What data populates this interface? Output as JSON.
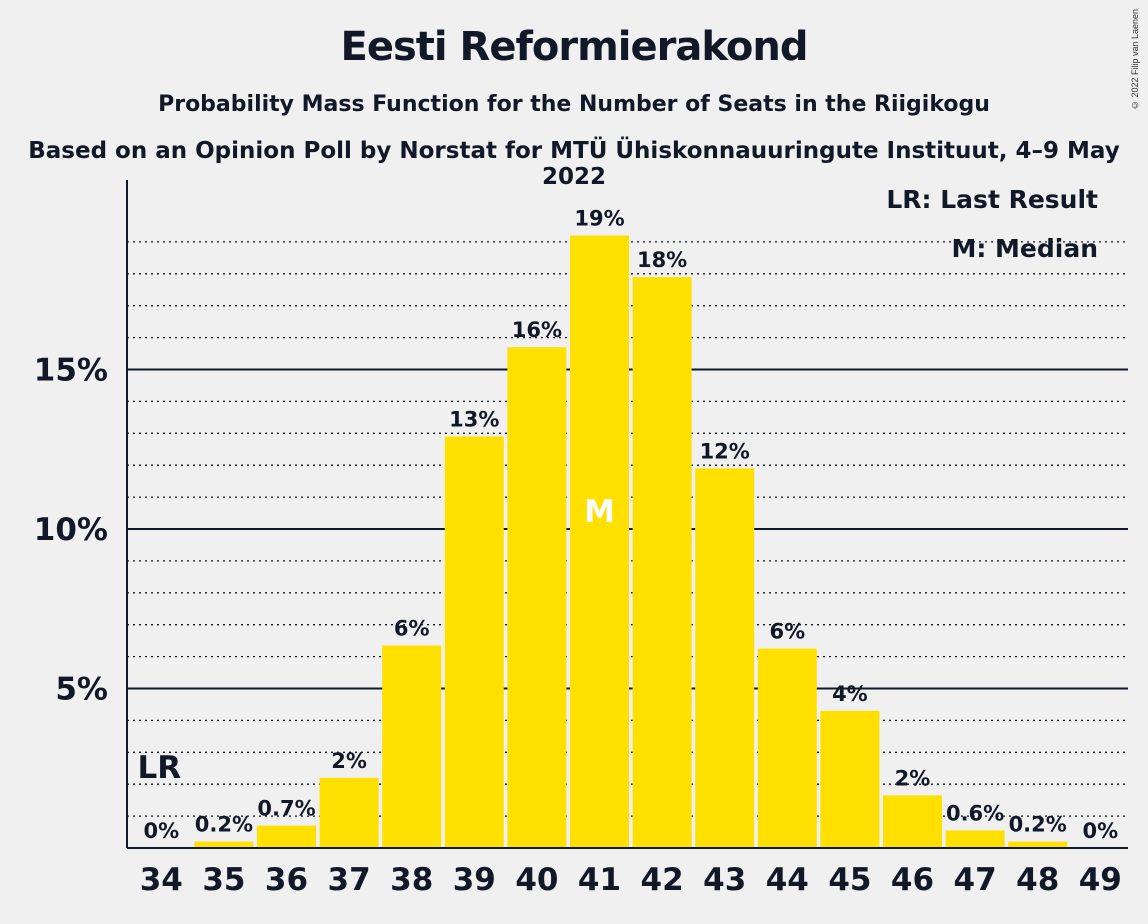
{
  "header": {
    "title": "Eesti Reformierakond",
    "subtitle": "Probability Mass Function for the Number of Seats in the Riigikogu",
    "source_line": "Based on an Opinion Poll by Norstat for MTÜ Ühiskonnauuringute Instituut, 4–9 May 2022",
    "copyright": "© 2022 Filip van Laenen"
  },
  "legend": {
    "last_result": "LR: Last Result",
    "median": "M: Median"
  },
  "chart_data": {
    "type": "bar",
    "title": "Eesti Reformierakond",
    "xlabel": "",
    "ylabel": "",
    "categories": [
      "34",
      "35",
      "36",
      "37",
      "38",
      "39",
      "40",
      "41",
      "42",
      "43",
      "44",
      "45",
      "46",
      "47",
      "48",
      "49"
    ],
    "values": [
      0,
      0.2,
      0.7,
      2.2,
      6.35,
      12.9,
      15.7,
      19.2,
      17.9,
      11.9,
      6.25,
      4.3,
      1.65,
      0.55,
      0.2,
      0
    ],
    "data_labels": [
      "0%",
      "0.2%",
      "0.7%",
      "2%",
      "6%",
      "13%",
      "16%",
      "19%",
      "18%",
      "12%",
      "6%",
      "4%",
      "2%",
      "0.6%",
      "0.2%",
      "0%"
    ],
    "y_ticks": [
      5,
      10,
      15
    ],
    "y_tick_labels": [
      "5%",
      "10%",
      "15%"
    ],
    "ylim": [
      0,
      21
    ],
    "bar_color": "#ffe000",
    "last_result": {
      "category": "34",
      "label": "LR"
    },
    "median": {
      "category": "41",
      "label": "M"
    },
    "grid": true,
    "legend_position": "top-right"
  }
}
